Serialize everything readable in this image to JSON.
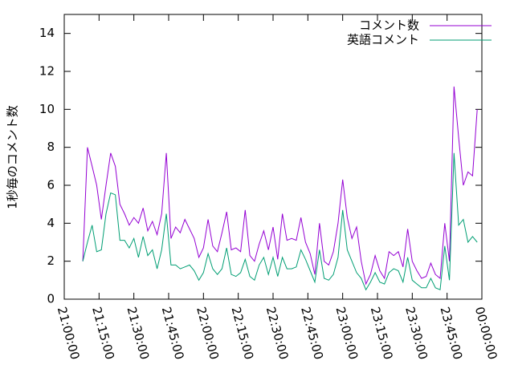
{
  "chart_data": {
    "type": "line",
    "ylabel": "1秒毎のコメント数",
    "x": [
      "21:08:00",
      "21:10:00",
      "21:12:00",
      "21:14:00",
      "21:16:00",
      "21:18:00",
      "21:20:00",
      "21:22:00",
      "21:24:00",
      "21:26:00",
      "21:28:00",
      "21:30:00",
      "21:32:00",
      "21:34:00",
      "21:36:00",
      "21:38:00",
      "21:40:00",
      "21:42:00",
      "21:44:00",
      "21:46:00",
      "21:48:00",
      "21:50:00",
      "21:52:00",
      "21:54:00",
      "21:56:00",
      "21:58:00",
      "22:00:00",
      "22:02:00",
      "22:04:00",
      "22:06:00",
      "22:08:00",
      "22:10:00",
      "22:12:00",
      "22:14:00",
      "22:16:00",
      "22:18:00",
      "22:20:00",
      "22:22:00",
      "22:24:00",
      "22:26:00",
      "22:28:00",
      "22:30:00",
      "22:32:00",
      "22:34:00",
      "22:36:00",
      "22:38:00",
      "22:40:00",
      "22:42:00",
      "22:44:00",
      "22:46:00",
      "22:48:00",
      "22:50:00",
      "22:52:00",
      "22:54:00",
      "22:56:00",
      "22:58:00",
      "23:00:00",
      "23:02:00",
      "23:04:00",
      "23:06:00",
      "23:08:00",
      "23:10:00",
      "23:12:00",
      "23:14:00",
      "23:16:00",
      "23:18:00",
      "23:20:00",
      "23:22:00",
      "23:24:00",
      "23:26:00",
      "23:28:00",
      "23:30:00",
      "23:32:00",
      "23:34:00",
      "23:36:00",
      "23:38:00",
      "23:40:00",
      "23:42:00",
      "23:44:00",
      "23:46:00",
      "23:48:00",
      "23:50:00",
      "23:52:00",
      "23:54:00",
      "23:56:00",
      "23:58:00"
    ],
    "series": [
      {
        "name": "コメント数",
        "color": "#9400d3",
        "values": [
          2.0,
          8.0,
          7.0,
          6.0,
          4.2,
          6.0,
          7.7,
          7.0,
          5.0,
          4.5,
          3.9,
          4.3,
          4.0,
          4.8,
          3.6,
          4.1,
          3.4,
          4.5,
          7.7,
          3.2,
          3.8,
          3.5,
          4.2,
          3.7,
          3.2,
          2.2,
          2.7,
          4.2,
          2.8,
          2.5,
          3.5,
          4.6,
          2.6,
          2.7,
          2.5,
          4.7,
          2.3,
          2.0,
          2.9,
          3.6,
          2.6,
          3.8,
          2.1,
          4.5,
          3.1,
          3.2,
          3.1,
          4.3,
          3.0,
          2.4,
          1.3,
          4.0,
          2.0,
          1.8,
          2.5,
          4.0,
          6.3,
          4.3,
          3.2,
          3.8,
          2.0,
          0.8,
          1.3,
          2.3,
          1.5,
          1.1,
          2.5,
          2.3,
          2.5,
          1.7,
          3.7,
          2.0,
          1.5,
          1.1,
          1.2,
          1.9,
          1.3,
          1.1,
          4.0,
          2.0,
          11.2,
          8.5,
          6.0,
          6.7,
          6.5,
          10.0
        ]
      },
      {
        "name": "英語コメント",
        "color": "#009e73",
        "values": [
          2.0,
          3.0,
          3.9,
          2.5,
          2.6,
          4.5,
          5.6,
          5.5,
          3.1,
          3.1,
          2.7,
          3.2,
          2.2,
          3.3,
          2.3,
          2.6,
          1.6,
          2.6,
          4.5,
          1.8,
          1.8,
          1.6,
          1.7,
          1.8,
          1.5,
          1.0,
          1.4,
          2.4,
          1.6,
          1.3,
          1.6,
          2.7,
          1.3,
          1.2,
          1.4,
          2.1,
          1.2,
          1.0,
          1.8,
          2.2,
          1.3,
          2.2,
          1.2,
          2.2,
          1.6,
          1.6,
          1.7,
          2.6,
          2.1,
          1.5,
          0.9,
          2.6,
          1.1,
          1.0,
          1.3,
          2.2,
          4.7,
          2.6,
          2.0,
          1.4,
          1.1,
          0.5,
          0.9,
          1.4,
          0.9,
          0.8,
          1.4,
          1.6,
          1.5,
          0.9,
          2.2,
          1.0,
          0.8,
          0.6,
          0.6,
          1.1,
          0.6,
          0.5,
          2.8,
          1.0,
          7.7,
          3.9,
          4.2,
          3.0,
          3.3,
          3.0
        ]
      }
    ],
    "xlim": [
      "21:00:00",
      "00:00:00"
    ],
    "xticks": [
      "21:00:00",
      "21:15:00",
      "21:30:00",
      "21:45:00",
      "22:00:00",
      "22:15:00",
      "22:30:00",
      "22:45:00",
      "23:00:00",
      "23:15:00",
      "23:30:00",
      "23:45:00",
      "00:00:00"
    ],
    "ylim": [
      0,
      15
    ],
    "yticks": [
      0,
      2,
      4,
      6,
      8,
      10,
      12,
      14
    ],
    "grid": false,
    "legend": "top-right"
  }
}
